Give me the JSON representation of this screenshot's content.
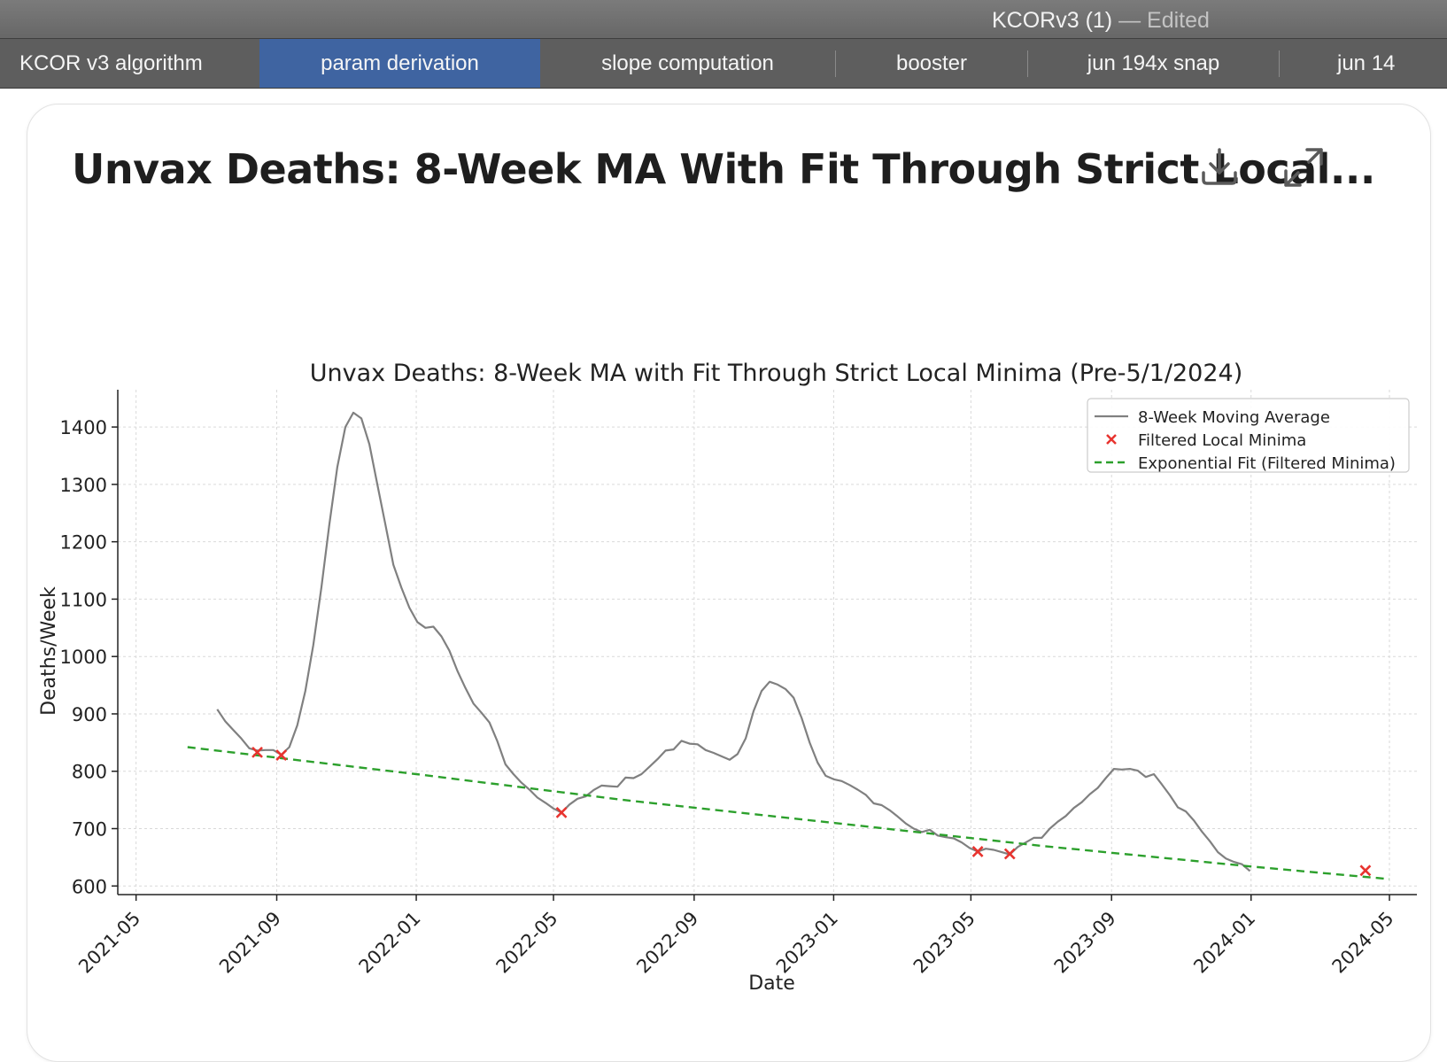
{
  "window": {
    "title": "KCORv3 (1)",
    "title_suffix": "— Edited"
  },
  "tabs": [
    {
      "label": "KCOR v3 algorithm",
      "active": false
    },
    {
      "label": "param derivation",
      "active": true
    },
    {
      "label": "slope computation",
      "active": false
    },
    {
      "label": "booster",
      "active": false
    },
    {
      "label": "jun 194x snap",
      "active": false
    },
    {
      "label": "jun 14",
      "active": false
    }
  ],
  "card": {
    "title": "Unvax Deaths: 8-Week MA With Fit Through Strict Local...",
    "download_icon": "download-icon",
    "expand_icon": "expand-icon"
  },
  "colors": {
    "accent_tab": "#3f64a1",
    "series_line": "#808080",
    "minima_marker": "#e8332e",
    "fit_line": "#2ca02c"
  },
  "chart_data": {
    "type": "line",
    "title": "Unvax Deaths: 8-Week MA with Fit Through Strict Local Minima (Pre-5/1/2024)",
    "xlabel": "Date",
    "ylabel": "Deaths/Week",
    "xlim": [
      "2021-04-15",
      "2024-05-25"
    ],
    "ylim": [
      585,
      1465
    ],
    "x_ticks": [
      "2021-05",
      "2021-09",
      "2022-01",
      "2022-05",
      "2022-09",
      "2023-01",
      "2023-05",
      "2023-09",
      "2024-01",
      "2024-05"
    ],
    "y_ticks": [
      600,
      700,
      800,
      900,
      1000,
      1100,
      1200,
      1300,
      1400
    ],
    "grid": true,
    "legend_position": "top-right",
    "series": [
      {
        "name": "8-Week Moving Average",
        "style": "solid",
        "points": [
          [
            "2021-07-11",
            908
          ],
          [
            "2021-07-18",
            887
          ],
          [
            "2021-07-25",
            872
          ],
          [
            "2021-08-01",
            857
          ],
          [
            "2021-08-08",
            840
          ],
          [
            "2021-08-15",
            836
          ],
          [
            "2021-08-22",
            837
          ],
          [
            "2021-08-29",
            837
          ],
          [
            "2021-09-05",
            829
          ],
          [
            "2021-09-12",
            842
          ],
          [
            "2021-09-19",
            880
          ],
          [
            "2021-09-26",
            940
          ],
          [
            "2021-10-03",
            1020
          ],
          [
            "2021-10-10",
            1120
          ],
          [
            "2021-10-17",
            1230
          ],
          [
            "2021-10-24",
            1330
          ],
          [
            "2021-10-31",
            1400
          ],
          [
            "2021-11-07",
            1425
          ],
          [
            "2021-11-14",
            1415
          ],
          [
            "2021-11-21",
            1370
          ],
          [
            "2021-11-28",
            1300
          ],
          [
            "2021-12-05",
            1230
          ],
          [
            "2021-12-12",
            1160
          ],
          [
            "2021-12-19",
            1120
          ],
          [
            "2021-12-26",
            1085
          ],
          [
            "2022-01-02",
            1060
          ],
          [
            "2022-01-09",
            1050
          ],
          [
            "2022-01-16",
            1052
          ],
          [
            "2022-01-23",
            1035
          ],
          [
            "2022-01-30",
            1010
          ],
          [
            "2022-02-06",
            975
          ],
          [
            "2022-02-13",
            945
          ],
          [
            "2022-02-20",
            918
          ],
          [
            "2022-02-27",
            902
          ],
          [
            "2022-03-06",
            885
          ],
          [
            "2022-03-13",
            852
          ],
          [
            "2022-03-20",
            812
          ],
          [
            "2022-03-27",
            795
          ],
          [
            "2022-04-03",
            780
          ],
          [
            "2022-04-10",
            768
          ],
          [
            "2022-04-17",
            754
          ],
          [
            "2022-04-24",
            745
          ],
          [
            "2022-05-01",
            735
          ],
          [
            "2022-05-08",
            728
          ],
          [
            "2022-05-15",
            742
          ],
          [
            "2022-05-22",
            752
          ],
          [
            "2022-05-29",
            756
          ],
          [
            "2022-06-05",
            767
          ],
          [
            "2022-06-12",
            775
          ],
          [
            "2022-06-19",
            774
          ],
          [
            "2022-06-26",
            773
          ],
          [
            "2022-07-03",
            789
          ],
          [
            "2022-07-10",
            788
          ],
          [
            "2022-07-17",
            795
          ],
          [
            "2022-07-24",
            808
          ],
          [
            "2022-07-31",
            821
          ],
          [
            "2022-08-07",
            836
          ],
          [
            "2022-08-14",
            838
          ],
          [
            "2022-08-21",
            853
          ],
          [
            "2022-08-28",
            848
          ],
          [
            "2022-09-04",
            847
          ],
          [
            "2022-09-11",
            837
          ],
          [
            "2022-09-18",
            832
          ],
          [
            "2022-09-25",
            826
          ],
          [
            "2022-10-02",
            820
          ],
          [
            "2022-10-09",
            830
          ],
          [
            "2022-10-16",
            857
          ],
          [
            "2022-10-23",
            905
          ],
          [
            "2022-10-30",
            940
          ],
          [
            "2022-11-06",
            956
          ],
          [
            "2022-11-13",
            951
          ],
          [
            "2022-11-20",
            943
          ],
          [
            "2022-11-27",
            928
          ],
          [
            "2022-12-04",
            893
          ],
          [
            "2022-12-11",
            850
          ],
          [
            "2022-12-18",
            815
          ],
          [
            "2022-12-25",
            792
          ],
          [
            "2023-01-01",
            786
          ],
          [
            "2023-01-08",
            783
          ],
          [
            "2023-01-15",
            776
          ],
          [
            "2023-01-22",
            768
          ],
          [
            "2023-01-29",
            759
          ],
          [
            "2023-02-05",
            744
          ],
          [
            "2023-02-12",
            741
          ],
          [
            "2023-02-19",
            732
          ],
          [
            "2023-02-26",
            721
          ],
          [
            "2023-03-05",
            709
          ],
          [
            "2023-03-12",
            700
          ],
          [
            "2023-03-19",
            694
          ],
          [
            "2023-03-26",
            698
          ],
          [
            "2023-04-02",
            688
          ],
          [
            "2023-04-09",
            685
          ],
          [
            "2023-04-16",
            683
          ],
          [
            "2023-04-23",
            676
          ],
          [
            "2023-04-30",
            666
          ],
          [
            "2023-05-07",
            660
          ],
          [
            "2023-05-14",
            665
          ],
          [
            "2023-05-21",
            663
          ],
          [
            "2023-05-28",
            659
          ],
          [
            "2023-06-04",
            655
          ],
          [
            "2023-06-11",
            668
          ],
          [
            "2023-06-18",
            676
          ],
          [
            "2023-06-25",
            684
          ],
          [
            "2023-07-02",
            684
          ],
          [
            "2023-07-09",
            700
          ],
          [
            "2023-07-16",
            712
          ],
          [
            "2023-07-23",
            722
          ],
          [
            "2023-07-30",
            736
          ],
          [
            "2023-08-06",
            746
          ],
          [
            "2023-08-13",
            760
          ],
          [
            "2023-08-20",
            771
          ],
          [
            "2023-08-27",
            788
          ],
          [
            "2023-09-03",
            804
          ],
          [
            "2023-09-10",
            803
          ],
          [
            "2023-09-17",
            804
          ],
          [
            "2023-09-24",
            801
          ],
          [
            "2023-10-01",
            790
          ],
          [
            "2023-10-08",
            795
          ],
          [
            "2023-10-15",
            777
          ],
          [
            "2023-10-22",
            758
          ],
          [
            "2023-10-29",
            737
          ],
          [
            "2023-11-05",
            730
          ],
          [
            "2023-11-12",
            714
          ],
          [
            "2023-11-19",
            695
          ],
          [
            "2023-11-26",
            678
          ],
          [
            "2023-12-03",
            659
          ],
          [
            "2023-12-10",
            648
          ],
          [
            "2023-12-17",
            642
          ],
          [
            "2023-12-24",
            638
          ],
          [
            "2023-12-31",
            626
          ]
        ]
      },
      {
        "name": "Filtered Local Minima",
        "style": "marker-x",
        "points": [
          [
            "2021-08-15",
            833
          ],
          [
            "2021-09-05",
            828
          ],
          [
            "2022-05-08",
            728
          ],
          [
            "2023-05-07",
            660
          ],
          [
            "2023-06-04",
            656
          ],
          [
            "2024-04-10",
            627
          ]
        ]
      },
      {
        "name": "Exponential Fit (Filtered Minima)",
        "style": "dashed",
        "points": [
          [
            "2021-06-15",
            842
          ],
          [
            "2022-01-01",
            795
          ],
          [
            "2022-07-01",
            750
          ],
          [
            "2023-01-01",
            710
          ],
          [
            "2023-07-01",
            670
          ],
          [
            "2024-01-01",
            634
          ],
          [
            "2024-05-01",
            612
          ]
        ]
      }
    ]
  }
}
